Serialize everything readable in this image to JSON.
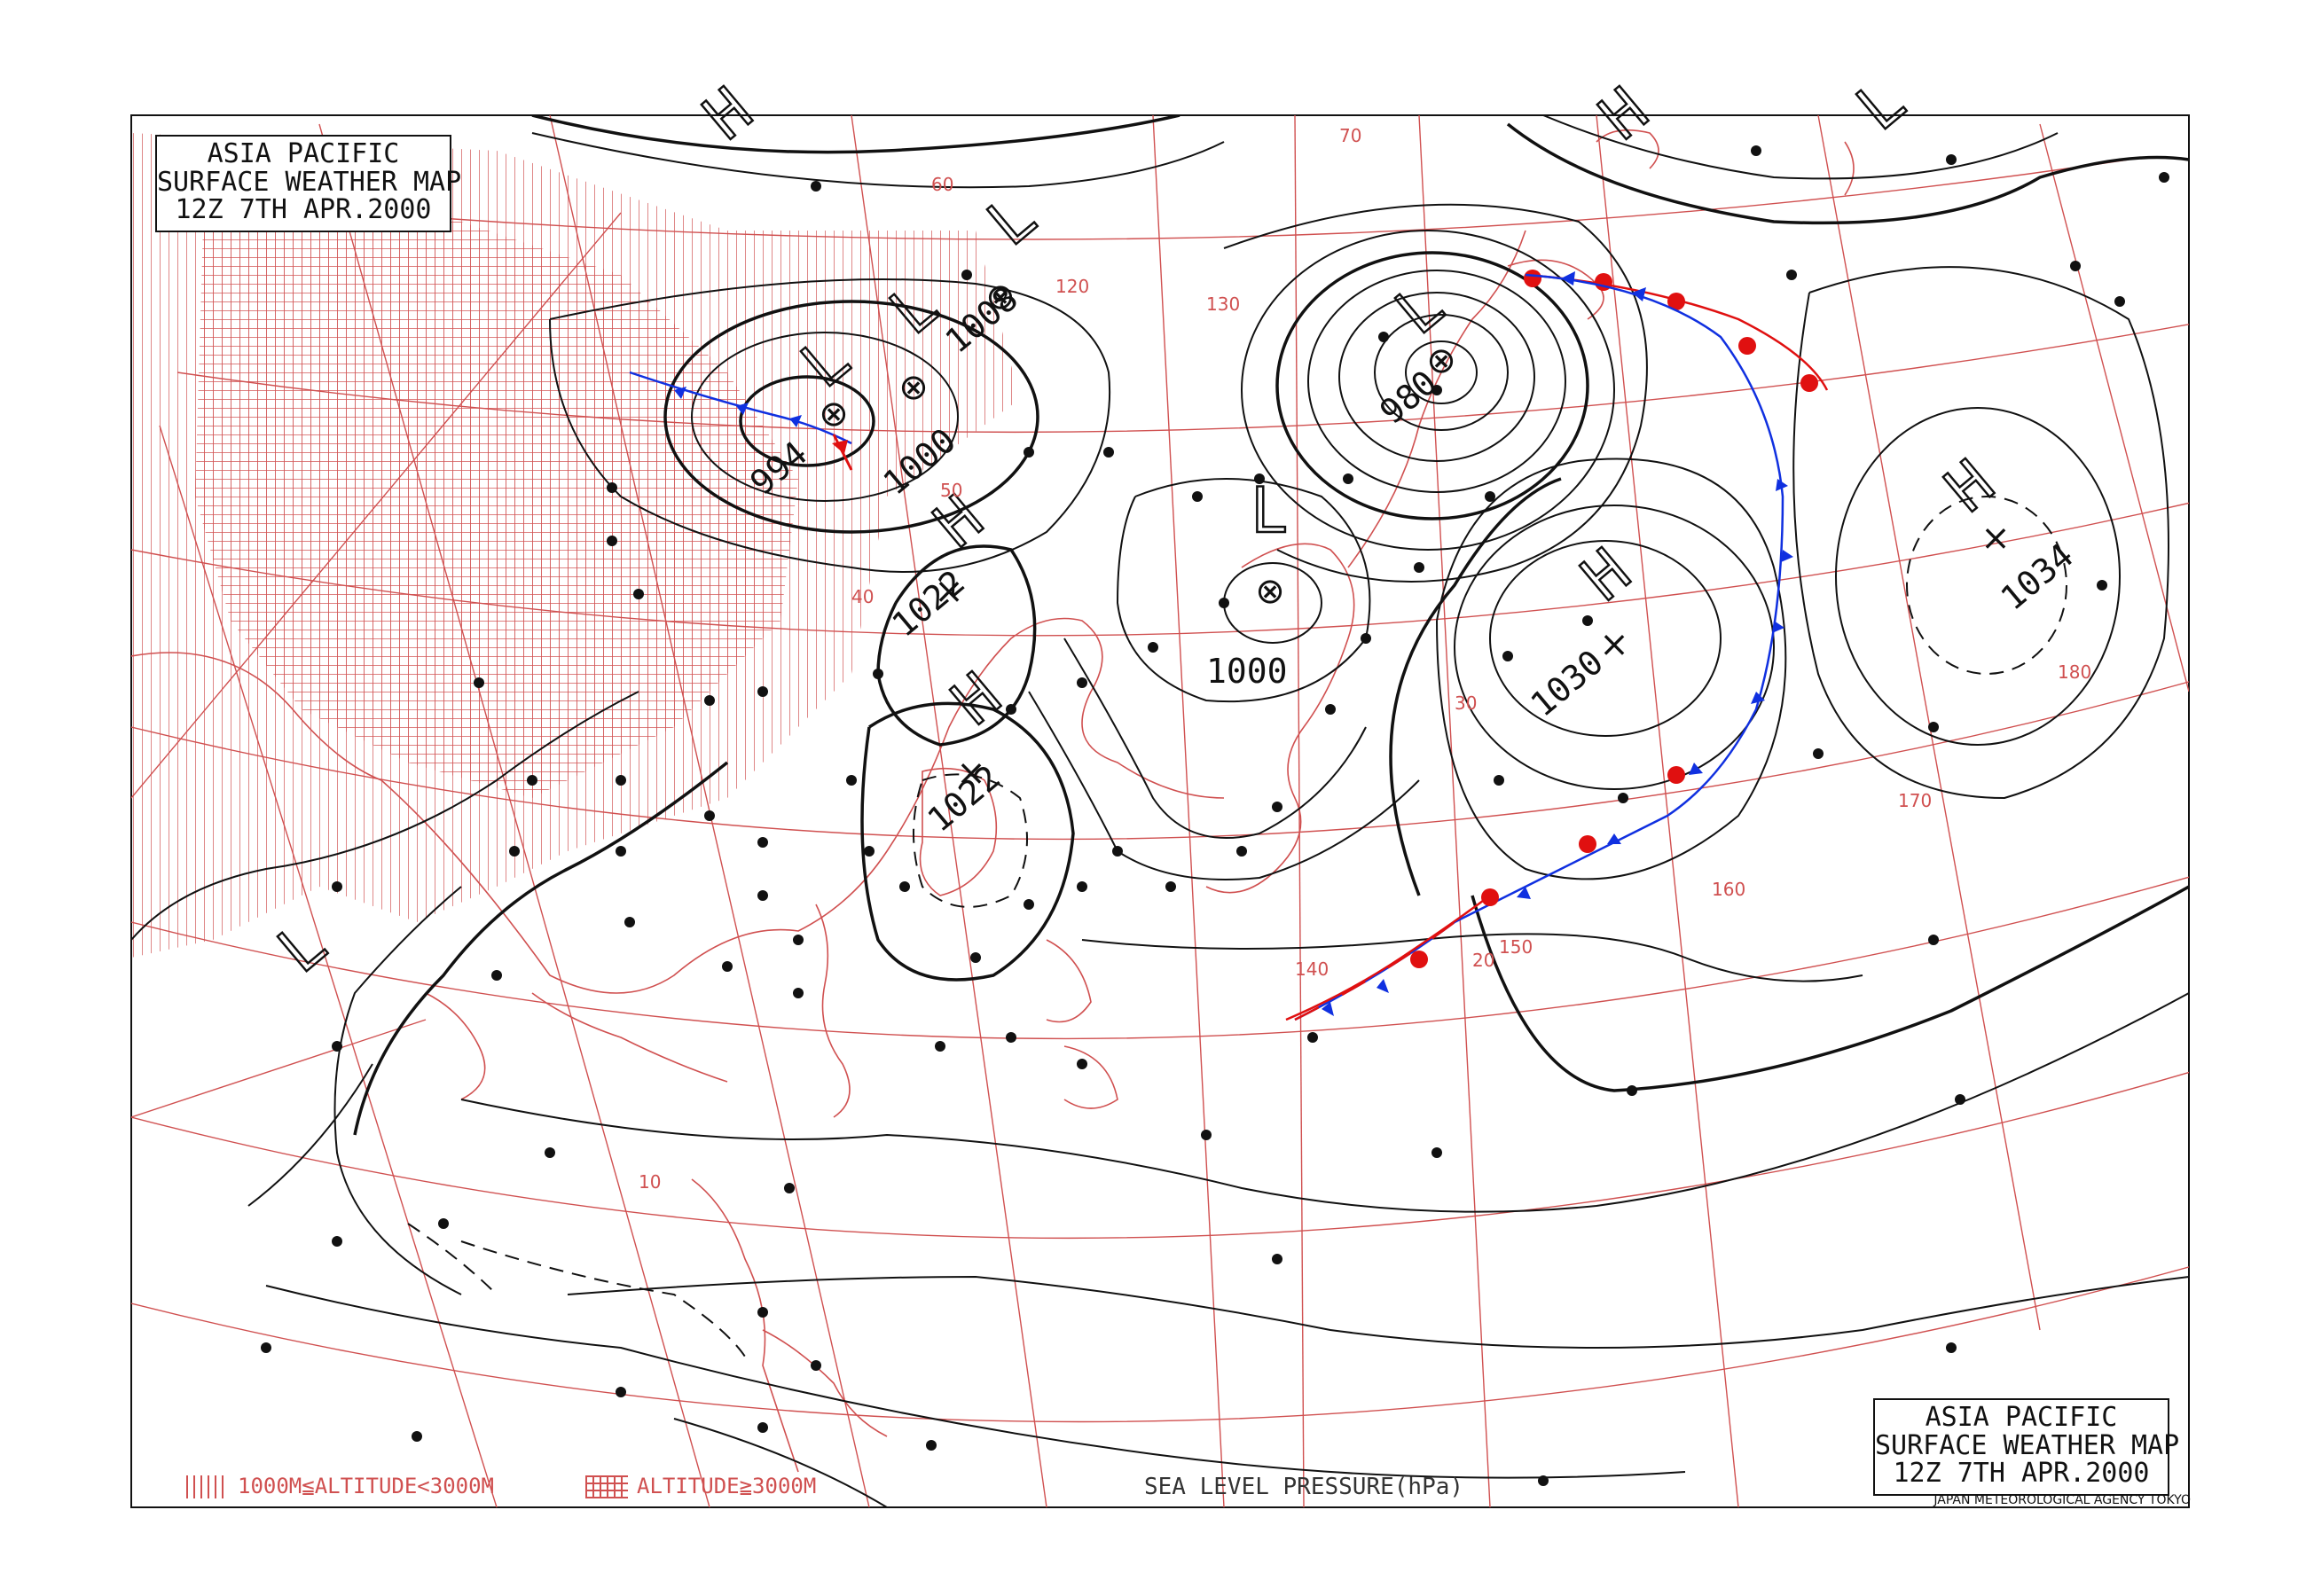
{
  "title": {
    "line1": "ASIA PACIFIC",
    "line2": "SURFACE WEATHER MAP",
    "line3": "12Z  7TH APR.2000"
  },
  "agency": "JAPAN METEOROLOGICAL AGENCY TOKYO",
  "legend": {
    "altitude_mid": "1000M≦ALTITUDE<3000M",
    "altitude_high": "ALTITUDE≧3000M",
    "sea_level_pressure": "SEA LEVEL PRESSURE(hPa)"
  },
  "colors": {
    "grid": "#d05050",
    "isobar": "#111111",
    "cold_front": "#1030e0",
    "warm_front": "#e01010"
  },
  "pressure_systems": [
    {
      "type": "L",
      "value": "994"
    },
    {
      "type": "L",
      "value": "1000"
    },
    {
      "type": "L",
      "value": "1008"
    },
    {
      "type": "L",
      "value": "980"
    },
    {
      "type": "L",
      "value": "1000"
    },
    {
      "type": "H",
      "value": "1022"
    },
    {
      "type": "H",
      "value": "1022"
    },
    {
      "type": "H",
      "value": "1030"
    },
    {
      "type": "H",
      "value": "1034"
    },
    {
      "type": "H",
      "value": ""
    },
    {
      "type": "H",
      "value": ""
    },
    {
      "type": "L",
      "value": ""
    },
    {
      "type": "L",
      "value": ""
    }
  ],
  "graticule_labels": [
    "70",
    "60",
    "50",
    "40",
    "30",
    "20",
    "10",
    "120",
    "130",
    "140",
    "150",
    "160",
    "170",
    "180"
  ]
}
